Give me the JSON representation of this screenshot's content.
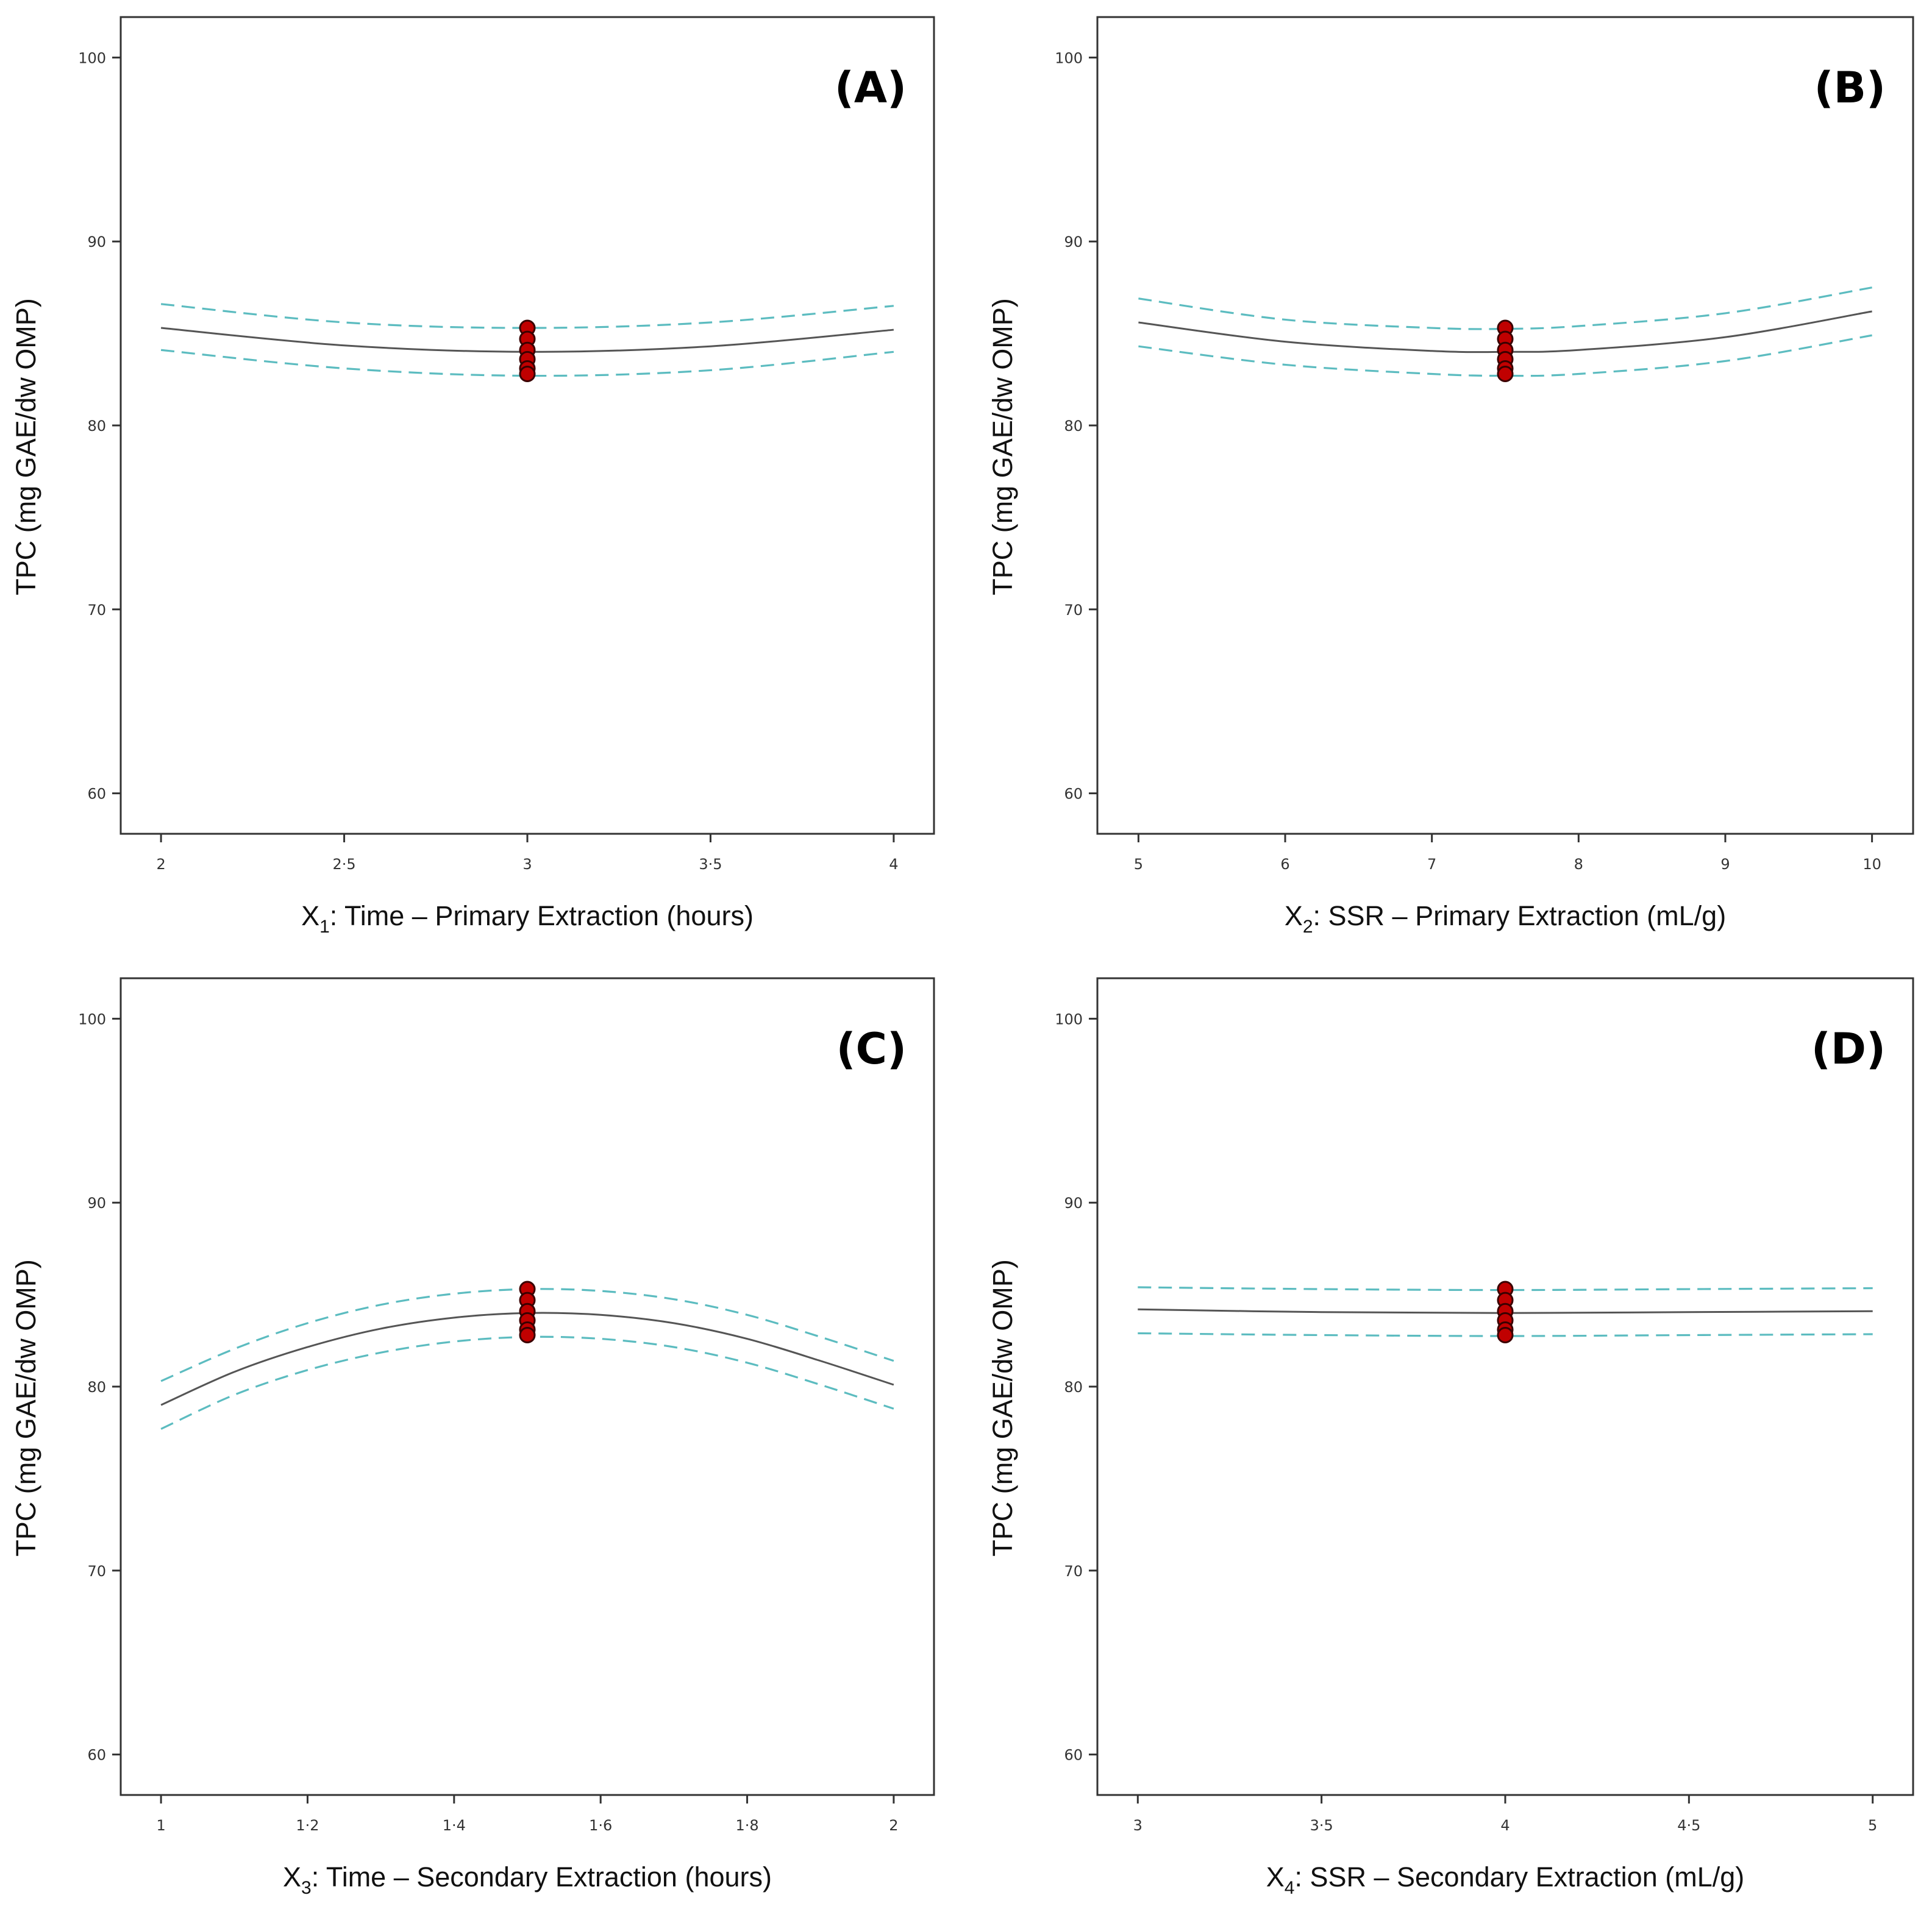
{
  "colors": {
    "fit": "#555555",
    "ci": "#5cbcc0",
    "point": "#c00000",
    "axis": "#333333"
  },
  "chart_data": [
    {
      "type": "line",
      "panel": "(A)",
      "xlabel_prefix": "X",
      "xlabel_sub": "1",
      "xlabel_rest": ": Time – Primary Extraction (hours)",
      "ylabel": "TPC (mg GAE/dw OMP)",
      "xlim": [
        1.89,
        4.11
      ],
      "ylim": [
        57.8,
        102.2
      ],
      "xticks": [
        2,
        2.5,
        3,
        3.5,
        4
      ],
      "xtick_labels": [
        "2",
        "2·5",
        "3",
        "3·5",
        "4"
      ],
      "yticks": [
        60,
        70,
        80,
        90,
        100
      ],
      "ytick_labels": [
        "60",
        "70",
        "80",
        "90",
        "100"
      ],
      "center_x": 3,
      "series": [
        {
          "name": "fit",
          "x": [
            2,
            2.5,
            3,
            3.5,
            4
          ],
          "y": [
            85.3,
            84.35,
            84.0,
            84.3,
            85.2
          ]
        },
        {
          "name": "upper 95% CI",
          "x": [
            2,
            2.5,
            3,
            3.5,
            4
          ],
          "y": [
            86.6,
            85.6,
            85.3,
            85.6,
            86.5
          ]
        },
        {
          "name": "lower 95% CI",
          "x": [
            2,
            2.5,
            3,
            3.5,
            4
          ],
          "y": [
            84.1,
            83.1,
            82.7,
            83.0,
            84.0
          ]
        },
        {
          "name": "center points",
          "x": [
            3,
            3,
            3,
            3,
            3,
            3
          ],
          "y": [
            85.3,
            84.7,
            84.1,
            83.6,
            83.1,
            82.8
          ]
        }
      ]
    },
    {
      "type": "line",
      "panel": "(B)",
      "xlabel_prefix": "X",
      "xlabel_sub": "2",
      "xlabel_rest": ": SSR – Primary Extraction (mL/g)",
      "ylabel": "TPC (mg GAE/dw OMP)",
      "xlim": [
        4.72,
        10.28
      ],
      "ylim": [
        57.8,
        102.2
      ],
      "xticks": [
        5,
        6,
        7,
        8,
        9,
        10
      ],
      "xtick_labels": [
        "5",
        "6",
        "7",
        "8",
        "9",
        "10"
      ],
      "yticks": [
        60,
        70,
        80,
        90,
        100
      ],
      "ytick_labels": [
        "60",
        "70",
        "80",
        "90",
        "100"
      ],
      "center_x": 7.5,
      "series": [
        {
          "name": "fit",
          "x": [
            5,
            6,
            7,
            7.5,
            8,
            9,
            10
          ],
          "y": [
            85.6,
            84.55,
            84.05,
            84.0,
            84.1,
            84.8,
            86.2
          ]
        },
        {
          "name": "upper 95% CI",
          "x": [
            5,
            6,
            7,
            7.5,
            8,
            9,
            10
          ],
          "y": [
            86.9,
            85.75,
            85.3,
            85.25,
            85.4,
            86.1,
            87.5
          ]
        },
        {
          "name": "lower 95% CI",
          "x": [
            5,
            6,
            7,
            7.5,
            8,
            9,
            10
          ],
          "y": [
            84.3,
            83.3,
            82.8,
            82.7,
            82.8,
            83.5,
            84.9
          ]
        },
        {
          "name": "center points",
          "x": [
            7.5,
            7.5,
            7.5,
            7.5,
            7.5,
            7.5
          ],
          "y": [
            85.3,
            84.7,
            84.1,
            83.6,
            83.1,
            82.8
          ]
        }
      ]
    },
    {
      "type": "line",
      "panel": "(C)",
      "xlabel_prefix": "X",
      "xlabel_sub": "3",
      "xlabel_rest": ": Time – Secondary Extraction (hours)",
      "ylabel": "TPC (mg GAE/dw OMP)",
      "xlim": [
        0.945,
        2.055
      ],
      "ylim": [
        57.8,
        102.2
      ],
      "xticks": [
        1,
        1.2,
        1.4,
        1.6,
        1.8,
        2
      ],
      "xtick_labels": [
        "1",
        "1·2",
        "1·4",
        "1·6",
        "1·8",
        "2"
      ],
      "yticks": [
        60,
        70,
        80,
        90,
        100
      ],
      "ytick_labels": [
        "60",
        "70",
        "80",
        "90",
        "100"
      ],
      "center_x": 1.5,
      "series": [
        {
          "name": "fit",
          "x": [
            1,
            1.1,
            1.2,
            1.3,
            1.4,
            1.5,
            1.6,
            1.7,
            1.8,
            1.9,
            2
          ],
          "y": [
            79.0,
            80.8,
            82.15,
            83.15,
            83.75,
            84.0,
            83.9,
            83.45,
            82.6,
            81.4,
            80.1
          ]
        },
        {
          "name": "upper 95% CI",
          "x": [
            1,
            1.1,
            1.2,
            1.3,
            1.4,
            1.5,
            1.6,
            1.7,
            1.8,
            1.9,
            2
          ],
          "y": [
            80.3,
            82.05,
            83.45,
            84.45,
            85.05,
            85.3,
            85.2,
            84.75,
            83.9,
            82.7,
            81.4
          ]
        },
        {
          "name": "lower 95% CI",
          "x": [
            1,
            1.1,
            1.2,
            1.3,
            1.4,
            1.5,
            1.6,
            1.7,
            1.8,
            1.9,
            2
          ],
          "y": [
            77.7,
            79.55,
            80.9,
            81.85,
            82.45,
            82.7,
            82.6,
            82.15,
            81.3,
            80.1,
            78.8
          ]
        },
        {
          "name": "center points",
          "x": [
            1.5,
            1.5,
            1.5,
            1.5,
            1.5,
            1.5
          ],
          "y": [
            85.3,
            84.7,
            84.1,
            83.6,
            83.1,
            82.8
          ]
        }
      ]
    },
    {
      "type": "line",
      "panel": "(D)",
      "xlabel_prefix": "X",
      "xlabel_sub": "4",
      "xlabel_rest": ": SSR – Secondary Extraction (mL/g)",
      "ylabel": "TPC (mg GAE/dw OMP)",
      "xlim": [
        2.89,
        5.11
      ],
      "ylim": [
        57.8,
        102.2
      ],
      "xticks": [
        3,
        3.5,
        4,
        4.5,
        5
      ],
      "xtick_labels": [
        "3",
        "3·5",
        "4",
        "4·5",
        "5"
      ],
      "yticks": [
        60,
        70,
        80,
        90,
        100
      ],
      "ytick_labels": [
        "60",
        "70",
        "80",
        "90",
        "100"
      ],
      "center_x": 4,
      "series": [
        {
          "name": "fit",
          "x": [
            3,
            3.5,
            4,
            4.5,
            5
          ],
          "y": [
            84.2,
            84.05,
            84.0,
            84.05,
            84.1
          ]
        },
        {
          "name": "upper 95% CI",
          "x": [
            3,
            3.5,
            4,
            4.5,
            5
          ],
          "y": [
            85.4,
            85.3,
            85.25,
            85.3,
            85.35
          ]
        },
        {
          "name": "lower 95% CI",
          "x": [
            3,
            3.5,
            4,
            4.5,
            5
          ],
          "y": [
            82.9,
            82.8,
            82.75,
            82.8,
            82.85
          ]
        },
        {
          "name": "center points",
          "x": [
            4,
            4,
            4,
            4,
            4,
            4
          ],
          "y": [
            85.3,
            84.7,
            84.1,
            83.6,
            83.1,
            82.8
          ]
        }
      ]
    }
  ]
}
